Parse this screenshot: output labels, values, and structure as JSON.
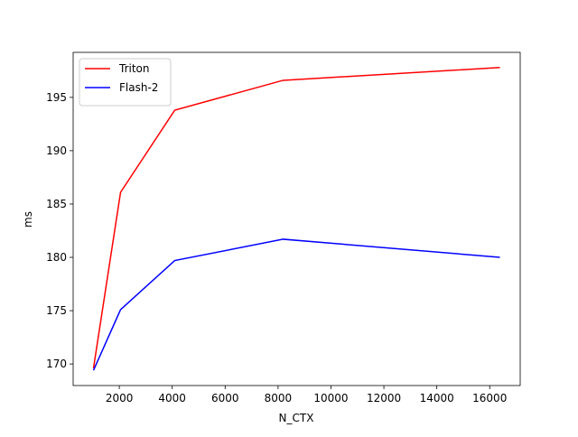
{
  "chart_data": {
    "type": "line",
    "x_label": "N_CTX",
    "y_label": "ms",
    "x": [
      1024,
      2048,
      4096,
      8192,
      16384
    ],
    "series": [
      {
        "name": "Triton",
        "color": "#ff0000",
        "values": [
          169.6,
          186.1,
          193.8,
          196.6,
          197.8
        ]
      },
      {
        "name": "Flash-2",
        "color": "#0000ff",
        "values": [
          169.4,
          175.1,
          179.7,
          181.7,
          180.0
        ]
      }
    ],
    "xlim": [
      256,
      17152
    ],
    "xticks": [
      2000,
      4000,
      6000,
      8000,
      10000,
      12000,
      14000,
      16000
    ],
    "ylim": [
      167.98,
      199.22
    ],
    "yticks": [
      170,
      175,
      180,
      185,
      190,
      195
    ],
    "legend": "upper left"
  }
}
